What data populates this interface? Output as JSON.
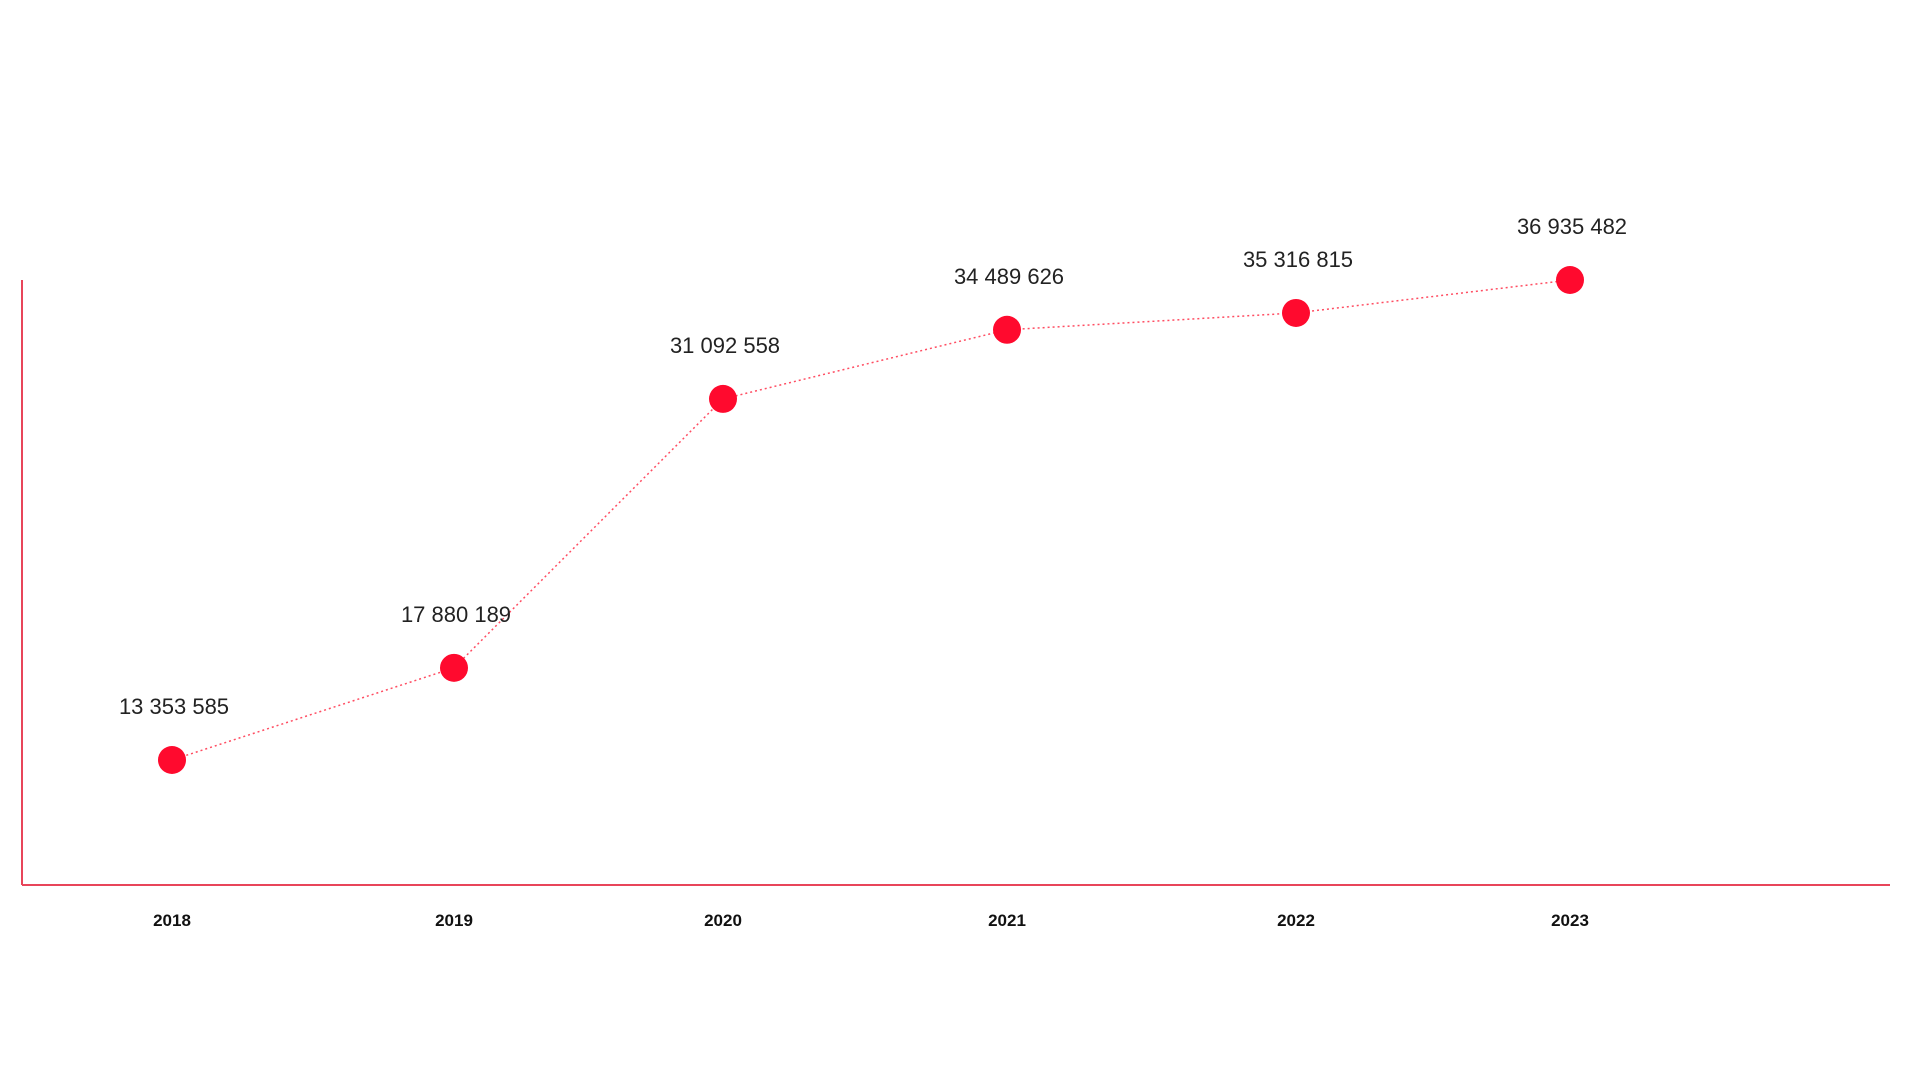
{
  "colors": {
    "accent": "#ff0a2e",
    "axis": "#e8455a",
    "line": "#ff4d62",
    "text": "#222222"
  },
  "chart_data": {
    "type": "line",
    "title": "",
    "xlabel": "",
    "ylabel": "",
    "categories": [
      "2018",
      "2019",
      "2020",
      "2021",
      "2022",
      "2023"
    ],
    "series": [
      {
        "values": [
          13353585,
          17880189,
          31092558,
          34489626,
          35316815,
          36935482
        ],
        "labels": [
          "13 353 585",
          "17 880 189",
          "31 092 558",
          "34 489 626",
          "35 316 815",
          "36 935 482"
        ]
      }
    ],
    "ylim": [
      0,
      43000000
    ],
    "grid": false,
    "legend": "none",
    "line_style": "dotted",
    "marker": "filled-circle"
  }
}
